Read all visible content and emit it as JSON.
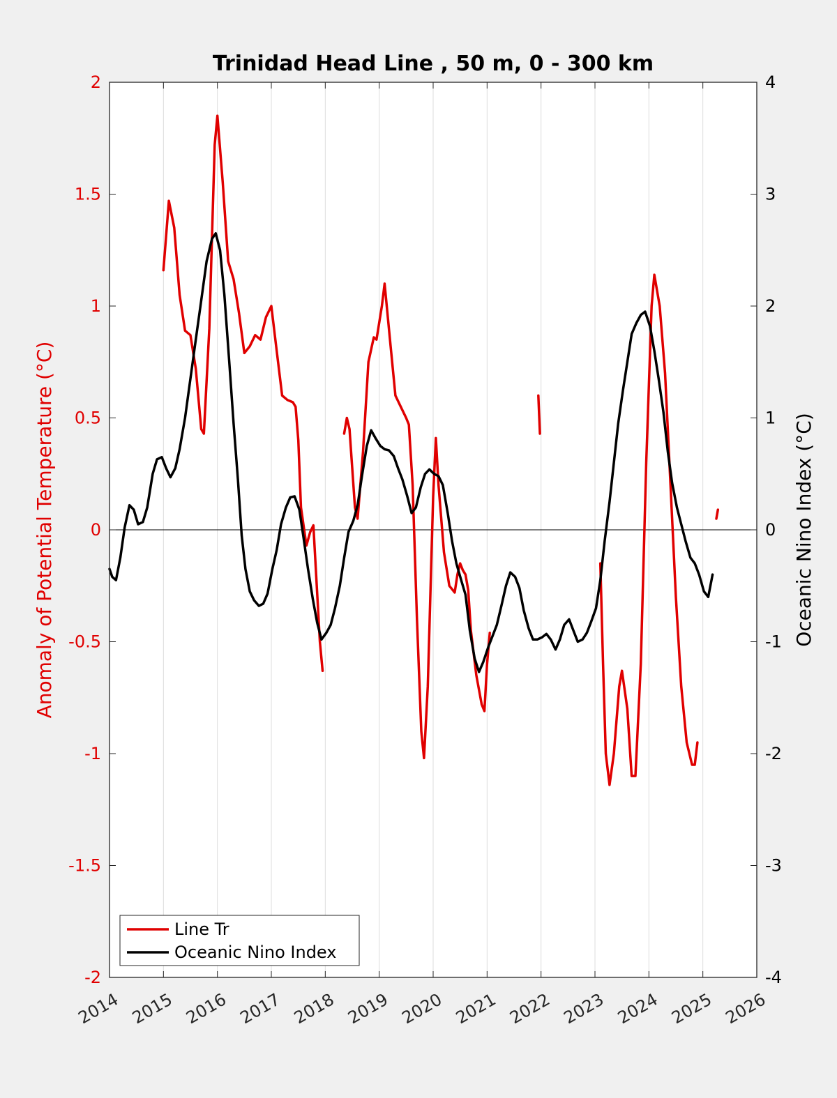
{
  "chart_data": {
    "type": "line",
    "title": "Trinidad Head Line , 50 m, 0 - 300 km",
    "ylabel_left": "Anomaly of Potential Temperature (°C)",
    "ylabel_right": "Oceanic Nino Index (°C)",
    "xlim": [
      2014,
      2026
    ],
    "ylim_left": [
      -2,
      2
    ],
    "ylim_right": [
      -4,
      4
    ],
    "x_ticks": [
      2014,
      2015,
      2016,
      2017,
      2018,
      2019,
      2020,
      2021,
      2022,
      2023,
      2024,
      2025,
      2026
    ],
    "x_tick_labels": [
      "2014",
      "2015",
      "2016",
      "2017",
      "2018",
      "2019",
      "2020",
      "2021",
      "2022",
      "2023",
      "2024",
      "2025",
      "2026"
    ],
    "y_ticks_left": [
      2,
      1.5,
      1,
      0.5,
      0,
      -0.5,
      -1,
      -1.5,
      -2
    ],
    "y_tick_labels_left": [
      "2",
      "1.5",
      "1",
      "0.5",
      "0",
      "-0.5",
      "-1",
      "-1.5",
      "-2"
    ],
    "y_ticks_right": [
      4,
      3,
      2,
      1,
      0,
      -1,
      -2,
      -3,
      -4
    ],
    "y_tick_labels_right": [
      "4",
      "3",
      "2",
      "1",
      "0",
      "-1",
      "-2",
      "-3",
      "-4"
    ],
    "grid": "vertical",
    "legend_position": "bottom-left",
    "series": [
      {
        "name": "Line Tr",
        "axis": "left",
        "color": "#e00000",
        "segments": [
          [
            [
              2015.0,
              1.16
            ],
            [
              2015.1,
              1.47
            ],
            [
              2015.2,
              1.35
            ],
            [
              2015.3,
              1.05
            ],
            [
              2015.4,
              0.89
            ],
            [
              2015.5,
              0.87
            ],
            [
              2015.6,
              0.72
            ],
            [
              2015.7,
              0.45
            ],
            [
              2015.75,
              0.43
            ],
            [
              2015.85,
              0.9
            ],
            [
              2015.95,
              1.72
            ],
            [
              2016.0,
              1.85
            ],
            [
              2016.1,
              1.55
            ],
            [
              2016.2,
              1.2
            ],
            [
              2016.3,
              1.12
            ],
            [
              2016.4,
              0.97
            ],
            [
              2016.5,
              0.79
            ],
            [
              2016.6,
              0.82
            ],
            [
              2016.7,
              0.87
            ],
            [
              2016.8,
              0.85
            ],
            [
              2016.9,
              0.95
            ],
            [
              2017.0,
              1.0
            ],
            [
              2017.1,
              0.8
            ],
            [
              2017.2,
              0.6
            ],
            [
              2017.3,
              0.58
            ],
            [
              2017.4,
              0.57
            ],
            [
              2017.45,
              0.55
            ],
            [
              2017.5,
              0.4
            ],
            [
              2017.55,
              0.1
            ],
            [
              2017.65,
              -0.07
            ],
            [
              2017.72,
              -0.01
            ],
            [
              2017.78,
              0.02
            ],
            [
              2017.9,
              -0.5
            ],
            [
              2017.95,
              -0.63
            ]
          ],
          [
            [
              2018.35,
              0.43
            ],
            [
              2018.4,
              0.5
            ],
            [
              2018.45,
              0.45
            ],
            [
              2018.55,
              0.1
            ],
            [
              2018.6,
              0.05
            ],
            [
              2018.7,
              0.35
            ],
            [
              2018.8,
              0.75
            ],
            [
              2018.9,
              0.86
            ],
            [
              2018.95,
              0.85
            ],
            [
              2019.05,
              1.0
            ],
            [
              2019.1,
              1.1
            ],
            [
              2019.2,
              0.85
            ],
            [
              2019.3,
              0.6
            ],
            [
              2019.4,
              0.55
            ],
            [
              2019.5,
              0.5
            ],
            [
              2019.55,
              0.47
            ],
            [
              2019.62,
              0.2
            ],
            [
              2019.7,
              -0.4
            ],
            [
              2019.78,
              -0.9
            ],
            [
              2019.83,
              -1.02
            ],
            [
              2019.9,
              -0.7
            ],
            [
              2020.0,
              0.15
            ],
            [
              2020.05,
              0.41
            ],
            [
              2020.1,
              0.2
            ],
            [
              2020.2,
              -0.1
            ],
            [
              2020.3,
              -0.25
            ],
            [
              2020.4,
              -0.28
            ],
            [
              2020.45,
              -0.2
            ],
            [
              2020.5,
              -0.15
            ],
            [
              2020.55,
              -0.18
            ],
            [
              2020.6,
              -0.2
            ],
            [
              2020.65,
              -0.27
            ],
            [
              2020.7,
              -0.45
            ],
            [
              2020.75,
              -0.55
            ],
            [
              2020.8,
              -0.65
            ],
            [
              2020.9,
              -0.78
            ],
            [
              2020.95,
              -0.81
            ],
            [
              2021.0,
              -0.6
            ],
            [
              2021.05,
              -0.46
            ]
          ],
          [
            [
              2021.95,
              0.6
            ],
            [
              2021.98,
              0.43
            ]
          ],
          [
            [
              2023.1,
              -0.15
            ],
            [
              2023.15,
              -0.6
            ],
            [
              2023.2,
              -1.0
            ],
            [
              2023.27,
              -1.14
            ],
            [
              2023.35,
              -1.0
            ],
            [
              2023.45,
              -0.7
            ],
            [
              2023.5,
              -0.63
            ],
            [
              2023.6,
              -0.8
            ],
            [
              2023.68,
              -1.1
            ],
            [
              2023.75,
              -1.1
            ],
            [
              2023.85,
              -0.6
            ],
            [
              2023.95,
              0.3
            ],
            [
              2024.05,
              1.0
            ],
            [
              2024.1,
              1.14
            ],
            [
              2024.2,
              1.0
            ],
            [
              2024.3,
              0.7
            ],
            [
              2024.4,
              0.2
            ],
            [
              2024.5,
              -0.3
            ],
            [
              2024.6,
              -0.7
            ],
            [
              2024.7,
              -0.95
            ],
            [
              2024.8,
              -1.05
            ],
            [
              2024.85,
              -1.05
            ],
            [
              2024.9,
              -0.95
            ]
          ],
          [
            [
              2025.25,
              0.05
            ],
            [
              2025.28,
              0.09
            ]
          ]
        ]
      },
      {
        "name": "Oceanic Nino Index",
        "axis": "right",
        "color": "#000000",
        "segments": [
          [
            [
              2014.0,
              -0.35
            ],
            [
              2014.05,
              -0.42
            ],
            [
              2014.12,
              -0.45
            ],
            [
              2014.2,
              -0.25
            ],
            [
              2014.28,
              0.02
            ],
            [
              2014.37,
              0.22
            ],
            [
              2014.45,
              0.18
            ],
            [
              2014.53,
              0.05
            ],
            [
              2014.62,
              0.07
            ],
            [
              2014.7,
              0.2
            ],
            [
              2014.8,
              0.5
            ],
            [
              2014.88,
              0.63
            ],
            [
              2014.97,
              0.65
            ],
            [
              2015.05,
              0.55
            ],
            [
              2015.13,
              0.47
            ],
            [
              2015.22,
              0.55
            ],
            [
              2015.3,
              0.72
            ],
            [
              2015.4,
              1.0
            ],
            [
              2015.5,
              1.35
            ],
            [
              2015.6,
              1.7
            ],
            [
              2015.7,
              2.05
            ],
            [
              2015.8,
              2.4
            ],
            [
              2015.9,
              2.6
            ],
            [
              2015.97,
              2.65
            ],
            [
              2016.05,
              2.5
            ],
            [
              2016.13,
              2.1
            ],
            [
              2016.22,
              1.5
            ],
            [
              2016.3,
              0.95
            ],
            [
              2016.38,
              0.45
            ],
            [
              2016.45,
              -0.05
            ],
            [
              2016.52,
              -0.35
            ],
            [
              2016.6,
              -0.55
            ],
            [
              2016.68,
              -0.63
            ],
            [
              2016.77,
              -0.68
            ],
            [
              2016.85,
              -0.66
            ],
            [
              2016.93,
              -0.57
            ],
            [
              2017.02,
              -0.35
            ],
            [
              2017.1,
              -0.18
            ],
            [
              2017.18,
              0.05
            ],
            [
              2017.27,
              0.2
            ],
            [
              2017.35,
              0.29
            ],
            [
              2017.43,
              0.3
            ],
            [
              2017.52,
              0.18
            ],
            [
              2017.6,
              -0.08
            ],
            [
              2017.68,
              -0.35
            ],
            [
              2017.77,
              -0.62
            ],
            [
              2017.85,
              -0.83
            ],
            [
              2017.93,
              -0.98
            ],
            [
              2018.02,
              -0.92
            ],
            [
              2018.1,
              -0.85
            ],
            [
              2018.18,
              -0.7
            ],
            [
              2018.27,
              -0.5
            ],
            [
              2018.35,
              -0.25
            ],
            [
              2018.43,
              -0.02
            ],
            [
              2018.52,
              0.08
            ],
            [
              2018.6,
              0.22
            ],
            [
              2018.68,
              0.48
            ],
            [
              2018.77,
              0.75
            ],
            [
              2018.85,
              0.89
            ],
            [
              2018.93,
              0.82
            ],
            [
              2019.02,
              0.75
            ],
            [
              2019.1,
              0.72
            ],
            [
              2019.18,
              0.71
            ],
            [
              2019.27,
              0.66
            ],
            [
              2019.35,
              0.55
            ],
            [
              2019.43,
              0.45
            ],
            [
              2019.52,
              0.3
            ],
            [
              2019.6,
              0.15
            ],
            [
              2019.68,
              0.2
            ],
            [
              2019.77,
              0.38
            ],
            [
              2019.85,
              0.5
            ],
            [
              2019.93,
              0.54
            ],
            [
              2020.02,
              0.5
            ],
            [
              2020.1,
              0.48
            ],
            [
              2020.18,
              0.4
            ],
            [
              2020.27,
              0.15
            ],
            [
              2020.35,
              -0.1
            ],
            [
              2020.43,
              -0.3
            ],
            [
              2020.52,
              -0.45
            ],
            [
              2020.6,
              -0.58
            ],
            [
              2020.68,
              -0.9
            ],
            [
              2020.77,
              -1.15
            ],
            [
              2020.85,
              -1.27
            ],
            [
              2020.93,
              -1.18
            ],
            [
              2021.02,
              -1.05
            ],
            [
              2021.1,
              -0.95
            ],
            [
              2021.18,
              -0.85
            ],
            [
              2021.27,
              -0.67
            ],
            [
              2021.35,
              -0.5
            ],
            [
              2021.43,
              -0.38
            ],
            [
              2021.52,
              -0.42
            ],
            [
              2021.6,
              -0.52
            ],
            [
              2021.68,
              -0.72
            ],
            [
              2021.77,
              -0.88
            ],
            [
              2021.85,
              -0.98
            ],
            [
              2021.93,
              -0.98
            ],
            [
              2022.02,
              -0.96
            ],
            [
              2022.1,
              -0.93
            ],
            [
              2022.18,
              -0.98
            ],
            [
              2022.27,
              -1.07
            ],
            [
              2022.35,
              -0.98
            ],
            [
              2022.43,
              -0.85
            ],
            [
              2022.52,
              -0.8
            ],
            [
              2022.6,
              -0.9
            ],
            [
              2022.68,
              -1.0
            ],
            [
              2022.77,
              -0.98
            ],
            [
              2022.85,
              -0.92
            ],
            [
              2022.93,
              -0.82
            ],
            [
              2023.02,
              -0.7
            ],
            [
              2023.1,
              -0.45
            ],
            [
              2023.18,
              -0.1
            ],
            [
              2023.27,
              0.25
            ],
            [
              2023.35,
              0.6
            ],
            [
              2023.43,
              0.95
            ],
            [
              2023.52,
              1.25
            ],
            [
              2023.6,
              1.5
            ],
            [
              2023.68,
              1.75
            ],
            [
              2023.77,
              1.85
            ],
            [
              2023.85,
              1.92
            ],
            [
              2023.93,
              1.95
            ],
            [
              2024.02,
              1.82
            ],
            [
              2024.1,
              1.6
            ],
            [
              2024.18,
              1.35
            ],
            [
              2024.27,
              1.05
            ],
            [
              2024.35,
              0.7
            ],
            [
              2024.43,
              0.42
            ],
            [
              2024.52,
              0.2
            ],
            [
              2024.6,
              0.05
            ],
            [
              2024.68,
              -0.1
            ],
            [
              2024.77,
              -0.25
            ],
            [
              2024.85,
              -0.3
            ],
            [
              2024.93,
              -0.4
            ],
            [
              2025.02,
              -0.55
            ],
            [
              2025.1,
              -0.6
            ],
            [
              2025.18,
              -0.4
            ]
          ]
        ]
      }
    ],
    "zero_line": 0
  }
}
